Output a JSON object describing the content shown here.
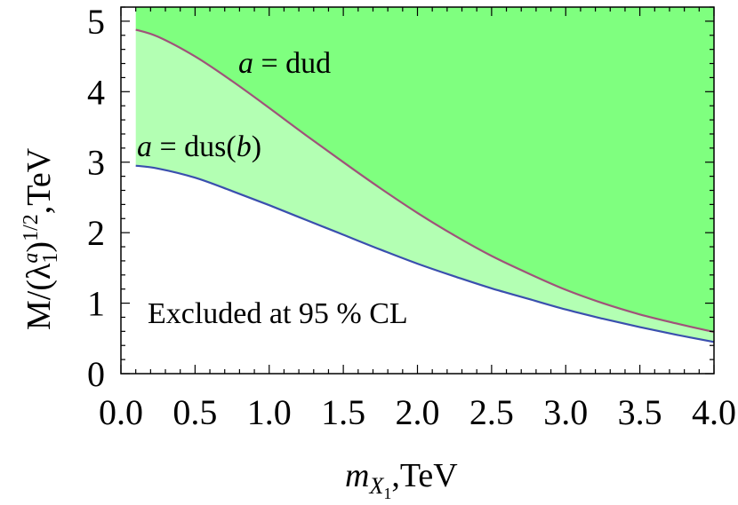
{
  "chart_data": {
    "type": "area",
    "xlabel": {
      "base": "m",
      "sub": "X",
      "subsub": "1",
      "suffix": ",TeV"
    },
    "ylabel": {
      "text": "M/(λ",
      "sub": "1",
      "sup": "a",
      "close": ")",
      "exp": "1/2",
      "suffix": ",TeV"
    },
    "xlim": [
      0.0,
      4.0
    ],
    "ylim": [
      0,
      5.2
    ],
    "xticks": [
      "0.0",
      "0.5",
      "1.0",
      "1.5",
      "2.0",
      "2.5",
      "3.0",
      "3.5",
      "4.0"
    ],
    "xtick_values": [
      0.0,
      0.5,
      1.0,
      1.5,
      2.0,
      2.5,
      3.0,
      3.5,
      4.0
    ],
    "yticks": [
      "0",
      "1",
      "2",
      "3",
      "4",
      "5"
    ],
    "ytick_values": [
      0,
      1,
      2,
      3,
      4,
      5
    ],
    "x": [
      0.1,
      0.25,
      0.5,
      0.75,
      1.0,
      1.25,
      1.5,
      1.75,
      2.0,
      2.25,
      2.5,
      2.75,
      3.0,
      3.25,
      3.5,
      3.75,
      4.0
    ],
    "series": [
      {
        "name": "dud",
        "label": {
          "italic": "a",
          "rest": " = dud"
        },
        "color": "#a0527a",
        "values": [
          4.88,
          4.78,
          4.5,
          4.15,
          3.77,
          3.38,
          3.0,
          2.63,
          2.28,
          1.96,
          1.67,
          1.42,
          1.19,
          1.0,
          0.84,
          0.71,
          0.59
        ]
      },
      {
        "name": "dus(b)",
        "label": {
          "italic": "a",
          "rest1": " = dus(",
          "italic2": "b",
          "rest2": ")"
        },
        "color": "#3a4fae",
        "values": [
          2.95,
          2.91,
          2.78,
          2.59,
          2.39,
          2.18,
          1.97,
          1.76,
          1.56,
          1.38,
          1.21,
          1.06,
          0.91,
          0.78,
          0.66,
          0.55,
          0.45
        ]
      }
    ],
    "fill_colors": {
      "upper": "#7fff7f",
      "middle": "#b3ffb3"
    },
    "annotation": "Excluded at 95 % CL",
    "grid": false
  }
}
